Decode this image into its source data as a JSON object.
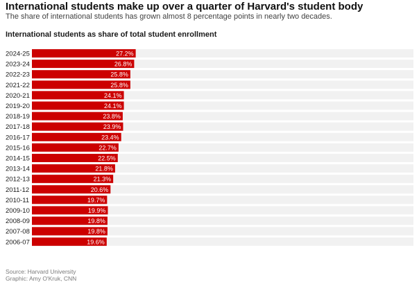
{
  "header": {
    "title": "International students make up over a quarter of Harvard's student body",
    "subtitle": "The share of international students has grown almost 8 percentage points in nearly two decades."
  },
  "chart_data": {
    "type": "bar",
    "orientation": "horizontal",
    "title": "International students as share of total student enrollment",
    "categories": [
      "2024-25",
      "2023-24",
      "2022-23",
      "2021-22",
      "2020-21",
      "2019-20",
      "2018-19",
      "2017-18",
      "2016-17",
      "2015-16",
      "2014-15",
      "2013-14",
      "2012-13",
      "2011-12",
      "2010-11",
      "2009-10",
      "2008-09",
      "2007-08",
      "2006-07"
    ],
    "values": [
      27.2,
      26.8,
      25.8,
      25.8,
      24.1,
      24.1,
      23.8,
      23.9,
      23.4,
      22.7,
      22.5,
      21.8,
      21.3,
      20.6,
      19.7,
      19.9,
      19.8,
      19.8,
      19.6
    ],
    "value_labels": [
      "27.2%",
      "26.8%",
      "25.8%",
      "25.8%",
      "24.1%",
      "24.1%",
      "23.8%",
      "23.9%",
      "23.4%",
      "22.7%",
      "22.5%",
      "21.8%",
      "21.3%",
      "20.6%",
      "19.7%",
      "19.9%",
      "19.8%",
      "19.8%",
      "19.6%"
    ],
    "xlim": [
      0,
      100
    ],
    "grid": false,
    "bar_color": "#cc0000",
    "track_color": "#f1f1f1",
    "label_color": "#ffffff"
  },
  "footer": {
    "source": "Source: Harvard University",
    "credit": "Graphic: Amy O'Kruk, CNN"
  }
}
